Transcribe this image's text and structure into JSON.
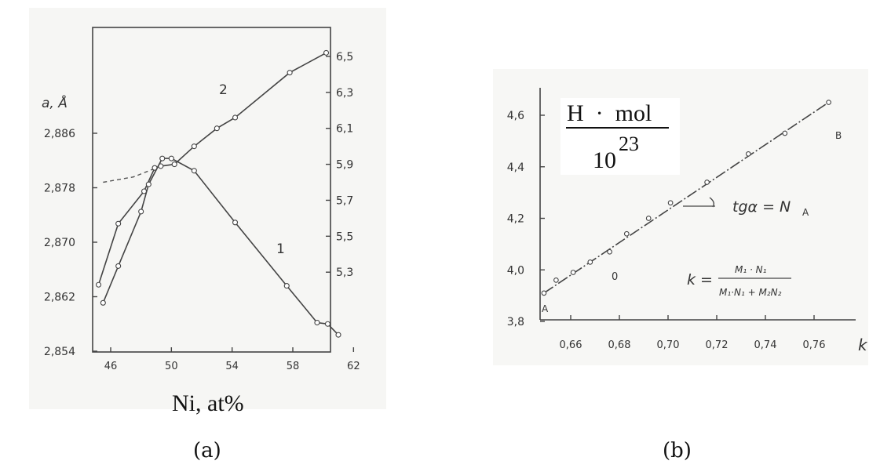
{
  "captions": {
    "a": "(a)",
    "b": "(b)"
  },
  "chart_data": [
    {
      "type": "line",
      "panel": "a",
      "xlabel": "Ni, at%",
      "ylabel_left": "a, Å",
      "x_ticks": [
        "46",
        "50",
        "54",
        "58",
        "62"
      ],
      "xlim": [
        45,
        62
      ],
      "y_left_ticks": [
        "2,854",
        "2,862",
        "2,870",
        "2,878",
        "2,886"
      ],
      "ylim_left": [
        2.854,
        2.894
      ],
      "y_right_ticks": [
        "5,3",
        "5,5",
        "5,7",
        "5,9",
        "6,1",
        "6,3",
        "6,5"
      ],
      "ylim_right": [
        5.0,
        6.6
      ],
      "grid": false,
      "series": [
        {
          "name": "1",
          "axis": "left",
          "points": [
            [
              45.5,
              2.8611
            ],
            [
              46.5,
              2.8665
            ],
            [
              48.0,
              2.8745
            ],
            [
              48.5,
              2.8785
            ],
            [
              49.4,
              2.8823
            ],
            [
              50.0,
              2.8823
            ],
            [
              51.5,
              2.8805
            ],
            [
              54.2,
              2.8729
            ],
            [
              57.6,
              2.8636
            ],
            [
              59.6,
              2.8582
            ],
            [
              60.3,
              2.858
            ],
            [
              61.0,
              2.8564
            ]
          ],
          "labels_shown": true
        },
        {
          "name": "2",
          "axis": "right",
          "points": [
            [
              45.2,
              5.23
            ],
            [
              46.5,
              5.57
            ],
            [
              48.2,
              5.75
            ],
            [
              48.9,
              5.88
            ],
            [
              49.3,
              5.89
            ],
            [
              50.2,
              5.9
            ],
            [
              51.5,
              6.0
            ],
            [
              53.0,
              6.1
            ],
            [
              54.2,
              6.16
            ],
            [
              57.8,
              6.41
            ],
            [
              60.2,
              6.52
            ]
          ],
          "extension_dashed": [
            [
              45.5,
              5.8
            ],
            [
              47.5,
              5.83
            ],
            [
              49.0,
              5.88
            ]
          ]
        }
      ]
    },
    {
      "type": "line",
      "panel": "b",
      "xlabel": "k",
      "x_ticks": [
        "0,66",
        "0,68",
        "0,70",
        "0,72",
        "0,74",
        "0,76"
      ],
      "xlim": [
        0.648,
        0.77
      ],
      "y_ticks": [
        "3,8",
        "4,0",
        "4,2",
        "4,4",
        "4,6"
      ],
      "ylim": [
        3.8,
        4.68
      ],
      "grid": false,
      "ylabel_formula": {
        "numerator": "H  ·  mol",
        "denominator_base": "10",
        "denominator_exponent": "23"
      },
      "annotations": {
        "slope": "tgα = N",
        "slope_sub": "A",
        "k_def_lhs": "k =",
        "k_def_num": "M₁ · N₁",
        "k_def_den": "M₁·N₁ + M₂N₂",
        "point_A": "A",
        "point_B": "B",
        "origin": "0"
      },
      "series": [
        {
          "name": "",
          "points": [
            [
              0.649,
              3.91
            ],
            [
              0.654,
              3.96
            ],
            [
              0.661,
              3.99
            ],
            [
              0.668,
              4.03
            ],
            [
              0.676,
              4.07
            ],
            [
              0.683,
              4.14
            ],
            [
              0.692,
              4.2
            ],
            [
              0.701,
              4.26
            ],
            [
              0.716,
              4.34
            ],
            [
              0.733,
              4.45
            ],
            [
              0.748,
              4.53
            ],
            [
              0.766,
              4.65
            ]
          ]
        }
      ]
    }
  ]
}
